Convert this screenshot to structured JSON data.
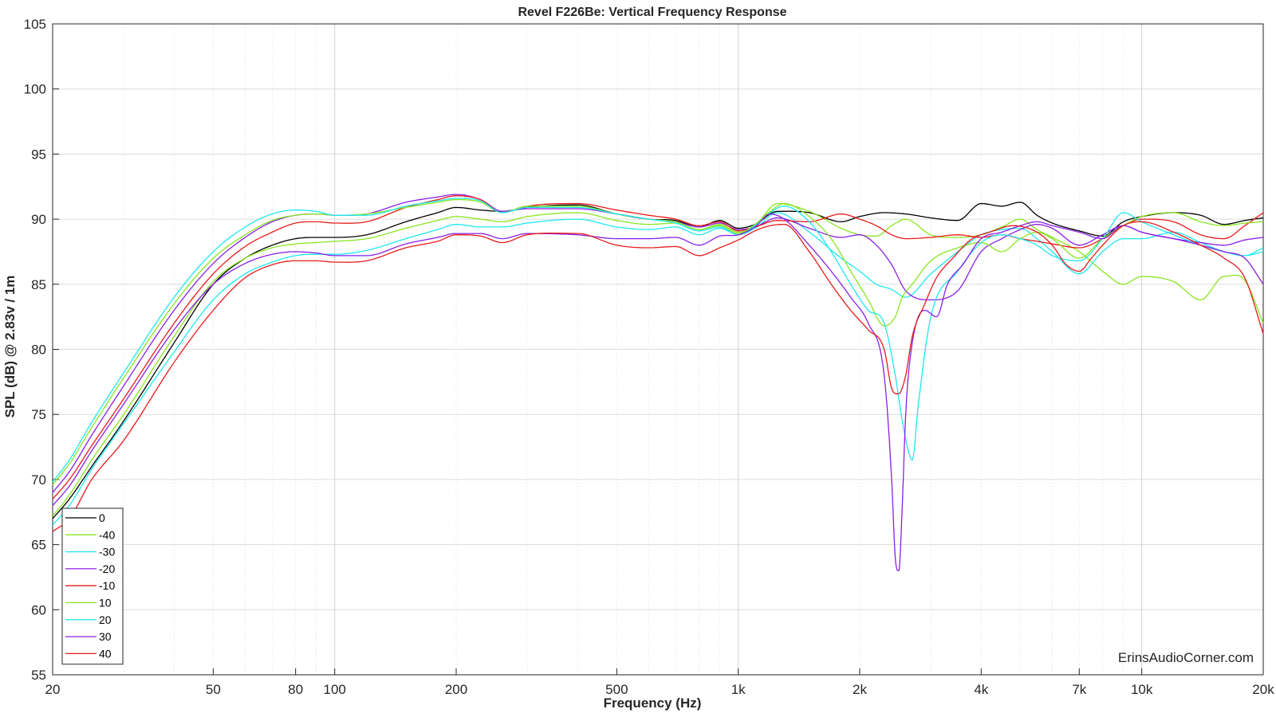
{
  "credit": "ErinsAudioCorner.com",
  "chart_data": {
    "type": "line",
    "title": "Revel F226Be: Vertical Frequency Response",
    "xlabel": "Frequency (Hz)",
    "ylabel": "SPL (dB) @ 2.83v / 1m",
    "xscale": "log",
    "xlim": [
      20,
      20000
    ],
    "ylim": [
      55,
      105
    ],
    "grid": true,
    "legend_position": "bottom-left",
    "x_ticks": [
      {
        "v": 20,
        "label": "20"
      },
      {
        "v": 50,
        "label": "50"
      },
      {
        "v": 80,
        "label": "80"
      },
      {
        "v": 100,
        "label": "100"
      },
      {
        "v": 200,
        "label": "200"
      },
      {
        "v": 500,
        "label": "500"
      },
      {
        "v": 1000,
        "label": "1k"
      },
      {
        "v": 2000,
        "label": "2k"
      },
      {
        "v": 4000,
        "label": "4k"
      },
      {
        "v": 7000,
        "label": "7k"
      },
      {
        "v": 10000,
        "label": "10k"
      },
      {
        "v": 20000,
        "label": "20k"
      }
    ],
    "y_ticks": [
      55,
      60,
      65,
      70,
      75,
      80,
      85,
      90,
      95,
      100,
      105
    ],
    "series": [
      {
        "name": "0",
        "color": "#000000",
        "x": [
          20,
          22,
          25,
          30,
          40,
          50,
          60,
          70,
          80,
          90,
          100,
          120,
          150,
          180,
          200,
          230,
          260,
          300,
          400,
          500,
          600,
          700,
          800,
          900,
          1000,
          1100,
          1250,
          1500,
          1800,
          2000,
          2300,
          2600,
          3000,
          3500,
          4000,
          4500,
          5000,
          5500,
          6000,
          7000,
          8000,
          9000,
          10000,
          12000,
          14000,
          16000,
          18000,
          20000
        ],
        "y": [
          67.0,
          68.5,
          71.0,
          74.5,
          80.5,
          85.0,
          87.0,
          88.0,
          88.5,
          88.6,
          88.6,
          88.8,
          89.8,
          90.5,
          90.9,
          90.7,
          90.6,
          90.9,
          91.1,
          90.4,
          90.0,
          89.9,
          89.4,
          89.9,
          89.3,
          89.6,
          90.6,
          90.5,
          89.8,
          90.2,
          90.5,
          90.4,
          90.1,
          89.9,
          91.2,
          91.0,
          91.3,
          90.3,
          89.7,
          89.1,
          88.7,
          89.8,
          90.2,
          90.5,
          90.3,
          89.6,
          89.9,
          90.1
        ]
      },
      {
        "name": "-40",
        "color": "#88e620",
        "x": [
          20,
          22,
          25,
          30,
          40,
          50,
          60,
          70,
          80,
          90,
          100,
          120,
          150,
          180,
          200,
          230,
          260,
          300,
          400,
          500,
          600,
          700,
          800,
          900,
          1000,
          1100,
          1250,
          1500,
          1800,
          2000,
          2200,
          2400,
          2600,
          3000,
          3500,
          4000,
          4500,
          5000,
          5500,
          6000,
          7000,
          8000,
          9000,
          10000,
          12000,
          14000,
          16000,
          18000,
          20000
        ],
        "y": [
          67.2,
          68.8,
          71.5,
          75.0,
          81.0,
          85.2,
          87.0,
          87.8,
          88.1,
          88.2,
          88.3,
          88.5,
          89.3,
          89.9,
          90.2,
          90.0,
          89.8,
          90.2,
          90.5,
          89.9,
          89.6,
          89.7,
          89.2,
          89.6,
          89.0,
          89.5,
          91.2,
          90.6,
          89.3,
          88.8,
          88.7,
          89.5,
          90.0,
          88.8,
          88.6,
          88.8,
          89.4,
          90.0,
          89.2,
          88.6,
          87.5,
          86.0,
          85.0,
          85.6,
          85.2,
          83.8,
          85.6,
          85.3,
          82.0
        ]
      },
      {
        "name": "-30",
        "color": "#1fe8f0",
        "x": [
          20,
          22,
          25,
          30,
          40,
          50,
          60,
          70,
          80,
          90,
          100,
          120,
          150,
          180,
          200,
          230,
          260,
          300,
          400,
          500,
          600,
          700,
          800,
          900,
          1000,
          1100,
          1250,
          1500,
          1800,
          2000,
          2200,
          2400,
          2600,
          3000,
          3500,
          4000,
          4500,
          5000,
          5500,
          6000,
          7000,
          8000,
          9000,
          10000,
          12000,
          14000,
          16000,
          18000,
          20000
        ],
        "y": [
          66.5,
          68.0,
          70.8,
          74.3,
          79.8,
          83.8,
          85.8,
          86.7,
          87.2,
          87.3,
          87.3,
          87.6,
          88.5,
          89.2,
          89.6,
          89.4,
          89.4,
          89.7,
          90.0,
          89.4,
          89.2,
          89.4,
          88.8,
          89.3,
          88.8,
          89.3,
          90.5,
          89.0,
          87.0,
          86.0,
          85.0,
          84.6,
          84.0,
          85.8,
          87.5,
          88.8,
          89.2,
          89.3,
          88.5,
          87.5,
          85.8,
          87.5,
          88.5,
          88.5,
          89.0,
          88.2,
          87.5,
          87.2,
          87.8
        ]
      },
      {
        "name": "-20",
        "color": "#8a1fe8",
        "x": [
          20,
          22,
          25,
          30,
          40,
          50,
          60,
          70,
          80,
          90,
          100,
          120,
          150,
          180,
          200,
          230,
          260,
          300,
          400,
          500,
          600,
          700,
          800,
          900,
          1000,
          1100,
          1250,
          1500,
          1800,
          2000,
          2200,
          2400,
          2600,
          3000,
          3500,
          4000,
          4500,
          5000,
          5500,
          6000,
          7000,
          8000,
          9000,
          10000,
          12000,
          14000,
          16000,
          18000,
          20000
        ],
        "y": [
          69.0,
          70.6,
          73.4,
          77.2,
          83.0,
          86.6,
          88.6,
          89.8,
          90.3,
          90.4,
          90.3,
          90.4,
          91.3,
          91.7,
          91.9,
          91.5,
          90.6,
          90.8,
          90.8,
          90.4,
          90.0,
          89.8,
          89.4,
          89.7,
          89.2,
          89.4,
          90.1,
          89.3,
          88.6,
          88.8,
          88.0,
          86.5,
          84.5,
          83.8,
          84.5,
          87.5,
          88.5,
          89.2,
          89.6,
          89.3,
          88.0,
          88.8,
          89.5,
          89.0,
          88.5,
          88.2,
          88.0,
          88.4,
          88.6
        ]
      },
      {
        "name": "-10",
        "color": "#e81a1a",
        "x": [
          20,
          22,
          25,
          30,
          40,
          50,
          60,
          70,
          80,
          90,
          100,
          120,
          150,
          180,
          200,
          230,
          260,
          300,
          400,
          500,
          600,
          700,
          800,
          900,
          1000,
          1100,
          1250,
          1500,
          1800,
          2000,
          2200,
          2400,
          2600,
          3000,
          3500,
          4000,
          4500,
          5000,
          5500,
          6000,
          7000,
          8000,
          9000,
          10000,
          12000,
          14000,
          16000,
          18000,
          20000
        ],
        "y": [
          68.5,
          70.0,
          72.6,
          76.2,
          82.0,
          85.8,
          87.9,
          89.0,
          89.7,
          89.8,
          89.7,
          89.8,
          90.9,
          91.5,
          91.8,
          91.5,
          90.5,
          91.0,
          91.2,
          90.7,
          90.3,
          90.0,
          89.5,
          89.8,
          89.1,
          89.4,
          89.9,
          89.8,
          90.4,
          90.0,
          89.5,
          88.8,
          88.5,
          88.6,
          88.8,
          88.6,
          88.8,
          88.5,
          88.3,
          88.1,
          87.8,
          88.5,
          89.5,
          90.0,
          89.8,
          88.8,
          88.5,
          89.5,
          90.5
        ]
      },
      {
        "name": "10",
        "color": "#88e620",
        "x": [
          20,
          22,
          25,
          30,
          40,
          50,
          60,
          70,
          80,
          90,
          100,
          120,
          150,
          180,
          200,
          230,
          260,
          300,
          400,
          500,
          600,
          700,
          800,
          900,
          1000,
          1100,
          1200,
          1300,
          1500,
          1700,
          1900,
          2100,
          2300,
          2450,
          2550,
          2700,
          3000,
          3500,
          4000,
          4500,
          5000,
          5500,
          6000,
          7000,
          8000,
          9000,
          10000,
          12000,
          14000,
          16000,
          18000,
          20000
        ],
        "y": [
          69.6,
          71.2,
          74.0,
          77.8,
          83.5,
          87.0,
          88.8,
          89.9,
          90.3,
          90.4,
          90.3,
          90.4,
          90.9,
          91.3,
          91.5,
          91.3,
          90.5,
          91.0,
          91.0,
          90.4,
          90.0,
          89.8,
          89.2,
          89.5,
          88.9,
          89.6,
          90.6,
          91.2,
          90.2,
          88.5,
          86.0,
          83.8,
          81.8,
          82.5,
          84.0,
          85.0,
          86.8,
          87.8,
          88.2,
          87.5,
          88.5,
          89.0,
          88.5,
          87.0,
          88.5,
          89.5,
          90.2,
          90.5,
          89.8,
          89.5,
          89.7,
          89.8
        ]
      },
      {
        "name": "20",
        "color": "#1fe8f0",
        "x": [
          20,
          22,
          25,
          30,
          40,
          50,
          60,
          70,
          80,
          90,
          100,
          120,
          150,
          180,
          200,
          230,
          260,
          300,
          400,
          500,
          600,
          700,
          800,
          900,
          1000,
          1100,
          1200,
          1300,
          1500,
          1700,
          1900,
          2100,
          2300,
          2450,
          2550,
          2650,
          2700,
          2800,
          3000,
          3500,
          4000,
          4500,
          5000,
          5500,
          6000,
          7000,
          8000,
          9000,
          10000,
          12000,
          14000,
          16000,
          18000,
          20000
        ],
        "y": [
          69.8,
          71.5,
          74.4,
          78.2,
          84.0,
          87.5,
          89.4,
          90.4,
          90.7,
          90.6,
          90.3,
          90.3,
          91.0,
          91.4,
          91.6,
          91.4,
          90.5,
          90.9,
          90.9,
          90.4,
          90.0,
          89.7,
          89.1,
          89.4,
          88.8,
          89.5,
          90.5,
          91.0,
          89.8,
          87.5,
          85.0,
          83.0,
          82.0,
          78.0,
          74.5,
          72.0,
          71.5,
          76.0,
          82.5,
          86.0,
          88.2,
          88.8,
          88.5,
          88.0,
          87.2,
          86.8,
          88.5,
          90.5,
          89.8,
          88.8,
          88.0,
          87.5,
          87.2,
          87.5
        ]
      },
      {
        "name": "30",
        "color": "#8a1fe8",
        "x": [
          20,
          22,
          25,
          30,
          40,
          50,
          60,
          70,
          80,
          90,
          100,
          120,
          150,
          180,
          200,
          230,
          260,
          300,
          400,
          500,
          600,
          700,
          800,
          900,
          1000,
          1100,
          1200,
          1300,
          1500,
          1700,
          1900,
          2100,
          2300,
          2400,
          2450,
          2500,
          2550,
          2600,
          2700,
          2900,
          3100,
          3300,
          3600,
          4000,
          4500,
          5000,
          5500,
          6000,
          7000,
          8000,
          9000,
          10000,
          12000,
          14000,
          16000,
          18000,
          20000
        ],
        "y": [
          68.0,
          69.5,
          72.2,
          75.8,
          81.5,
          85.0,
          86.6,
          87.3,
          87.5,
          87.4,
          87.2,
          87.2,
          88.1,
          88.6,
          88.9,
          88.9,
          88.5,
          88.9,
          88.8,
          88.5,
          88.5,
          88.6,
          88.0,
          88.7,
          88.8,
          89.4,
          90.4,
          90.0,
          88.0,
          86.0,
          84.0,
          82.0,
          78.0,
          70.0,
          64.0,
          63.0,
          68.0,
          75.0,
          80.5,
          83.0,
          82.5,
          85.0,
          86.5,
          88.5,
          89.0,
          89.5,
          89.8,
          89.5,
          89.0,
          88.5,
          89.5,
          89.0,
          88.5,
          88.0,
          87.5,
          87.0,
          85.0
        ]
      },
      {
        "name": "40",
        "color": "#e81a1a",
        "x": [
          20,
          22,
          25,
          30,
          40,
          50,
          60,
          70,
          80,
          90,
          100,
          120,
          150,
          180,
          200,
          230,
          260,
          300,
          400,
          500,
          600,
          700,
          800,
          900,
          1000,
          1100,
          1200,
          1300,
          1500,
          1700,
          1900,
          2100,
          2300,
          2400,
          2500,
          2600,
          2700,
          2900,
          3100,
          3400,
          3800,
          4200,
          4800,
          5500,
          6000,
          6500,
          7000,
          7500,
          8000,
          9000,
          10000,
          12000,
          14000,
          16000,
          18000,
          20000
        ],
        "y": [
          66.0,
          67.0,
          70.0,
          73.0,
          79.0,
          83.0,
          85.5,
          86.5,
          86.8,
          86.8,
          86.7,
          86.8,
          87.8,
          88.3,
          88.8,
          88.7,
          88.2,
          88.8,
          88.9,
          88.0,
          87.8,
          87.9,
          87.2,
          87.8,
          88.4,
          89.1,
          89.5,
          89.6,
          87.5,
          85.0,
          83.0,
          81.5,
          80.0,
          77.0,
          76.6,
          78.0,
          81.0,
          83.5,
          85.5,
          87.0,
          88.5,
          89.0,
          89.5,
          89.0,
          88.0,
          86.5,
          86.0,
          87.0,
          88.0,
          89.5,
          89.8,
          89.0,
          88.0,
          87.0,
          85.5,
          81.2
        ]
      }
    ]
  }
}
